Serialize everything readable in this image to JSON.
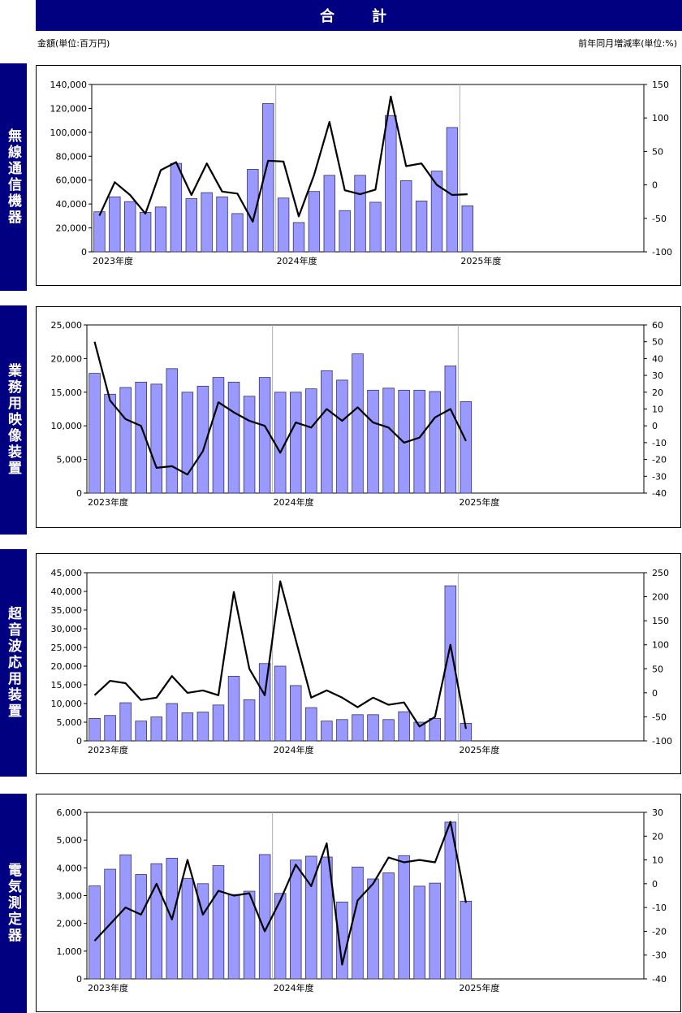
{
  "header": {
    "title": "合　計",
    "left_unit": "金額(単位:百万円)",
    "right_unit": "前年同月増減率(単位:%)"
  },
  "colors": {
    "navy": "#000080",
    "bar_fill": "#9999ff",
    "bar_stroke": "#333366",
    "line": "#000000"
  },
  "x_labels": [
    "2023年度",
    "2024年度",
    "2025年度"
  ],
  "chart_data": [
    {
      "type": "bar",
      "title": "無線通信機器",
      "categories": [
        "2023-04",
        "2023-05",
        "2023-06",
        "2023-07",
        "2023-08",
        "2023-09",
        "2023-10",
        "2023-11",
        "2023-12",
        "2024-01",
        "2024-02",
        "2024-03",
        "2024-04",
        "2024-05",
        "2024-06",
        "2024-07",
        "2024-08",
        "2024-09",
        "2024-10",
        "2024-11",
        "2024-12",
        "2025-01",
        "2025-02",
        "2025-03",
        "2025-04"
      ],
      "series": [
        {
          "name": "金額",
          "axis": "left",
          "type": "bar",
          "values": [
            33500,
            46000,
            42000,
            33000,
            37500,
            74000,
            44500,
            49500,
            46000,
            32000,
            69000,
            124000,
            45000,
            24500,
            50500,
            64000,
            34500,
            64000,
            41500,
            114000,
            59500,
            42500,
            67500,
            104000,
            38500
          ]
        },
        {
          "name": "前年同月増減率",
          "axis": "right",
          "type": "line",
          "values": [
            -46,
            4,
            -15,
            -43,
            22,
            34,
            -15,
            32,
            -10,
            -13,
            -55,
            36,
            35,
            -47,
            15,
            94,
            -8,
            -14,
            -7,
            132,
            28,
            32,
            0,
            -15,
            -14
          ]
        }
      ],
      "ylim_left": [
        0,
        140000
      ],
      "ylim_right": [
        -100,
        150
      ],
      "yticks_left": [
        "0",
        "20,000",
        "40,000",
        "60,000",
        "80,000",
        "100,000",
        "120,000",
        "140,000"
      ],
      "yticks_right": [
        "-100",
        "-50",
        "0",
        "50",
        "100",
        "150"
      ]
    },
    {
      "type": "bar",
      "title": "業務用映像装置",
      "categories": [
        "2023-04",
        "2023-05",
        "2023-06",
        "2023-07",
        "2023-08",
        "2023-09",
        "2023-10",
        "2023-11",
        "2023-12",
        "2024-01",
        "2024-02",
        "2024-03",
        "2024-04",
        "2024-05",
        "2024-06",
        "2024-07",
        "2024-08",
        "2024-09",
        "2024-10",
        "2024-11",
        "2024-12",
        "2025-01",
        "2025-02",
        "2025-03",
        "2025-04"
      ],
      "series": [
        {
          "name": "金額",
          "axis": "left",
          "type": "bar",
          "values": [
            17800,
            14700,
            15700,
            16500,
            16200,
            18500,
            15000,
            15900,
            17200,
            16500,
            14400,
            17200,
            15000,
            15000,
            15500,
            18200,
            16800,
            20700,
            15300,
            15600,
            15300,
            15300,
            15100,
            18900,
            13600
          ]
        },
        {
          "name": "前年同月増減率",
          "axis": "right",
          "type": "line",
          "values": [
            50,
            15,
            4,
            0,
            -25,
            -24,
            -29,
            -15,
            14,
            8,
            3,
            0,
            -16,
            2,
            -1,
            10,
            3,
            11,
            2,
            -1,
            -10,
            -7,
            5,
            10,
            -9
          ]
        }
      ],
      "ylim_left": [
        0,
        25000
      ],
      "ylim_right": [
        -40,
        60
      ],
      "yticks_left": [
        "0",
        "5,000",
        "10,000",
        "15,000",
        "20,000",
        "25,000"
      ],
      "yticks_right": [
        "-40",
        "-30",
        "-20",
        "-10",
        "0",
        "10",
        "20",
        "30",
        "40",
        "50",
        "60"
      ]
    },
    {
      "type": "bar",
      "title": "超音波応用装置",
      "categories": [
        "2023-04",
        "2023-05",
        "2023-06",
        "2023-07",
        "2023-08",
        "2023-09",
        "2023-10",
        "2023-11",
        "2023-12",
        "2024-01",
        "2024-02",
        "2024-03",
        "2024-04",
        "2024-05",
        "2024-06",
        "2024-07",
        "2024-08",
        "2024-09",
        "2024-10",
        "2024-11",
        "2024-12",
        "2025-01",
        "2025-02",
        "2025-03",
        "2025-04"
      ],
      "series": [
        {
          "name": "金額",
          "axis": "left",
          "type": "bar",
          "values": [
            6000,
            6800,
            10200,
            5300,
            6400,
            10000,
            7500,
            7700,
            9600,
            17300,
            11000,
            20700,
            20000,
            14800,
            8900,
            5300,
            5700,
            7000,
            7000,
            5700,
            7800,
            5000,
            6000,
            41500,
            4700
          ]
        },
        {
          "name": "前年同月増減率",
          "axis": "right",
          "type": "line",
          "values": [
            -5,
            25,
            20,
            -15,
            -10,
            35,
            0,
            5,
            -5,
            210,
            50,
            -5,
            232,
            110,
            -10,
            5,
            -10,
            -30,
            -10,
            -25,
            -20,
            -70,
            -50,
            100,
            -75
          ]
        }
      ],
      "ylim_left": [
        0,
        45000
      ],
      "ylim_right": [
        -100,
        250
      ],
      "yticks_left": [
        "0",
        "5,000",
        "10,000",
        "15,000",
        "20,000",
        "25,000",
        "30,000",
        "35,000",
        "40,000",
        "45,000"
      ],
      "yticks_right": [
        "-100",
        "-50",
        "0",
        "50",
        "100",
        "150",
        "200",
        "250"
      ]
    },
    {
      "type": "bar",
      "title": "電気測定器",
      "categories": [
        "2023-04",
        "2023-05",
        "2023-06",
        "2023-07",
        "2023-08",
        "2023-09",
        "2023-10",
        "2023-11",
        "2023-12",
        "2024-01",
        "2024-02",
        "2024-03",
        "2024-04",
        "2024-05",
        "2024-06",
        "2024-07",
        "2024-08",
        "2024-09",
        "2024-10",
        "2024-11",
        "2024-12",
        "2025-01",
        "2025-02",
        "2025-03",
        "2025-04"
      ],
      "series": [
        {
          "name": "金額",
          "axis": "left",
          "type": "bar",
          "values": [
            3350,
            3950,
            4470,
            3760,
            4150,
            4350,
            3620,
            3430,
            4080,
            3040,
            3160,
            4480,
            3080,
            4280,
            4420,
            4390,
            2770,
            4030,
            3600,
            3820,
            4440,
            3340,
            3450,
            5650,
            2800
          ]
        },
        {
          "name": "前年同月増減率",
          "axis": "right",
          "type": "line",
          "values": [
            -24,
            -17,
            -10,
            -13,
            0,
            -15,
            10,
            -13,
            -3,
            -5,
            -4,
            -20,
            -7,
            8,
            -1,
            17,
            -34,
            -7,
            0,
            11,
            9,
            10,
            9,
            26,
            -8
          ]
        }
      ],
      "ylim_left": [
        0,
        6000
      ],
      "ylim_right": [
        -40,
        30
      ],
      "yticks_left": [
        "0",
        "1,000",
        "2,000",
        "3,000",
        "4,000",
        "5,000",
        "6,000"
      ],
      "yticks_right": [
        "-40",
        "-30",
        "-20",
        "-10",
        "0",
        "10",
        "20",
        "30"
      ]
    }
  ]
}
